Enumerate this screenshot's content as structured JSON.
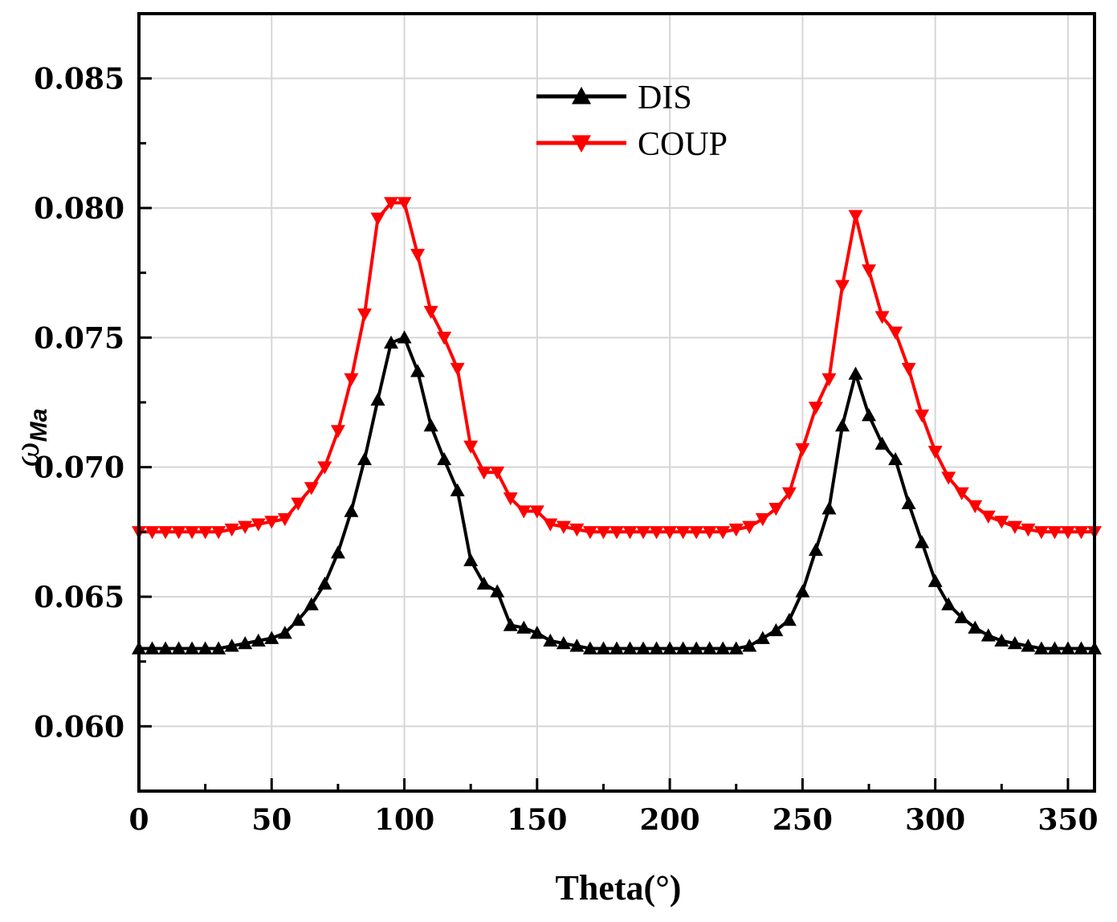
{
  "chart_data": {
    "type": "line",
    "title": "",
    "xlabel": "Theta(°)",
    "ylabel": "ω",
    "ylabel_subscript": "Ma",
    "xlim": [
      0,
      360
    ],
    "ylim": [
      0.0575,
      0.0875
    ],
    "xticks": [
      0,
      50,
      100,
      150,
      200,
      250,
      300,
      350
    ],
    "xtick_labels": [
      "0",
      "50",
      "100",
      "150",
      "200",
      "250",
      "300",
      "350"
    ],
    "yticks": [
      0.06,
      0.065,
      0.07,
      0.075,
      0.08,
      0.085
    ],
    "ytick_labels": [
      "0.060",
      "0.065",
      "0.070",
      "0.075",
      "0.080",
      "0.085"
    ],
    "grid": true,
    "legend_position": "top-center",
    "series": [
      {
        "name": "DIS",
        "color": "#000000",
        "marker": "triangle-up",
        "x": [
          0,
          5,
          10,
          15,
          20,
          25,
          30,
          35,
          40,
          45,
          50,
          55,
          60,
          65,
          70,
          75,
          80,
          85,
          90,
          95,
          100,
          105,
          110,
          115,
          120,
          125,
          130,
          135,
          140,
          145,
          150,
          155,
          160,
          165,
          170,
          175,
          180,
          185,
          190,
          195,
          200,
          205,
          210,
          215,
          220,
          225,
          230,
          235,
          240,
          245,
          250,
          255,
          260,
          265,
          270,
          275,
          280,
          285,
          290,
          295,
          300,
          305,
          310,
          315,
          320,
          325,
          330,
          335,
          340,
          345,
          350,
          355,
          360
        ],
        "values": [
          0.063,
          0.063,
          0.063,
          0.063,
          0.063,
          0.063,
          0.063,
          0.0631,
          0.0632,
          0.0633,
          0.0634,
          0.0636,
          0.0641,
          0.0647,
          0.0655,
          0.0667,
          0.0683,
          0.0703,
          0.0726,
          0.0748,
          0.075,
          0.0737,
          0.0716,
          0.0703,
          0.0691,
          0.0664,
          0.0655,
          0.0652,
          0.0639,
          0.0638,
          0.0636,
          0.0633,
          0.0632,
          0.0631,
          0.063,
          0.063,
          0.063,
          0.063,
          0.063,
          0.063,
          0.063,
          0.063,
          0.063,
          0.063,
          0.063,
          0.063,
          0.0631,
          0.0634,
          0.0637,
          0.0641,
          0.0652,
          0.0668,
          0.0684,
          0.0716,
          0.0736,
          0.072,
          0.0709,
          0.0703,
          0.0686,
          0.0671,
          0.0656,
          0.0647,
          0.0642,
          0.0638,
          0.0635,
          0.0633,
          0.0632,
          0.0631,
          0.063,
          0.063,
          0.063,
          0.063,
          0.063
        ]
      },
      {
        "name": "COUP",
        "color": "#ff0000",
        "marker": "triangle-down",
        "x": [
          0,
          5,
          10,
          15,
          20,
          25,
          30,
          35,
          40,
          45,
          50,
          55,
          60,
          65,
          70,
          75,
          80,
          85,
          90,
          95,
          100,
          105,
          110,
          115,
          120,
          125,
          130,
          135,
          140,
          145,
          150,
          155,
          160,
          165,
          170,
          175,
          180,
          185,
          190,
          195,
          200,
          205,
          210,
          215,
          220,
          225,
          230,
          235,
          240,
          245,
          250,
          255,
          260,
          265,
          270,
          275,
          280,
          285,
          290,
          295,
          300,
          305,
          310,
          315,
          320,
          325,
          330,
          335,
          340,
          345,
          350,
          355,
          360
        ],
        "values": [
          0.0675,
          0.0675,
          0.0675,
          0.0675,
          0.0675,
          0.0675,
          0.0675,
          0.0676,
          0.0677,
          0.0678,
          0.0679,
          0.068,
          0.0686,
          0.0692,
          0.07,
          0.0714,
          0.0734,
          0.0759,
          0.0796,
          0.0802,
          0.0802,
          0.0782,
          0.076,
          0.075,
          0.0738,
          0.0708,
          0.0698,
          0.0698,
          0.0688,
          0.0683,
          0.0683,
          0.0678,
          0.0677,
          0.0676,
          0.0675,
          0.0675,
          0.0675,
          0.0675,
          0.0675,
          0.0675,
          0.0675,
          0.0675,
          0.0675,
          0.0675,
          0.0675,
          0.0676,
          0.0677,
          0.068,
          0.0684,
          0.069,
          0.0707,
          0.0723,
          0.0734,
          0.077,
          0.0797,
          0.0776,
          0.0758,
          0.0752,
          0.0738,
          0.072,
          0.0706,
          0.0696,
          0.069,
          0.0685,
          0.0681,
          0.0679,
          0.0677,
          0.0676,
          0.0675,
          0.0675,
          0.0675,
          0.0675,
          0.0675
        ]
      }
    ]
  }
}
